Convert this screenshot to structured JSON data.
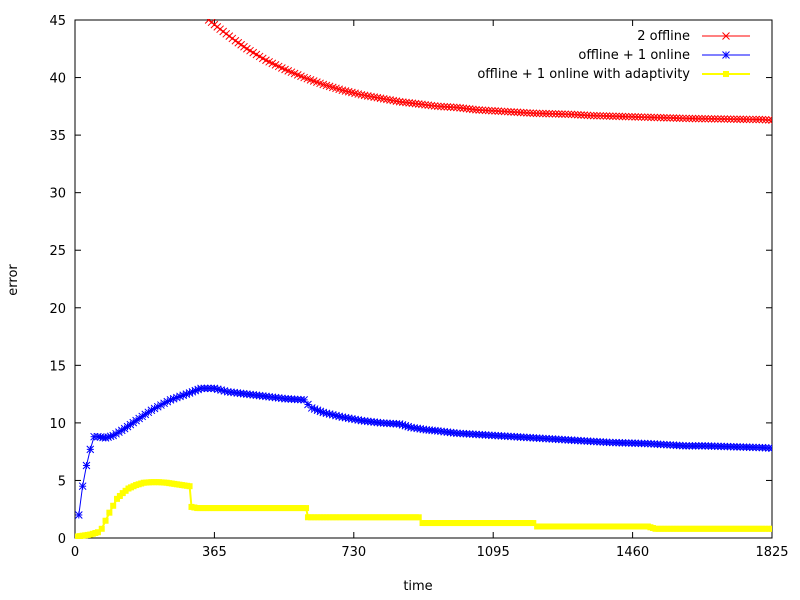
{
  "chart_data": {
    "type": "line",
    "title": "",
    "xlabel": "time",
    "ylabel": "error",
    "xlim": [
      0,
      1825
    ],
    "ylim": [
      0,
      45
    ],
    "xticks": [
      0,
      365,
      730,
      1095,
      1460,
      1825
    ],
    "yticks": [
      0,
      5,
      10,
      15,
      20,
      25,
      30,
      35,
      40,
      45
    ],
    "grid": false,
    "legend_position": "top-right",
    "series": [
      {
        "name": "2 offline",
        "color": "#ff0000",
        "marker": "x",
        "points": [
          [
            350,
            45.0
          ],
          [
            380,
            44.2
          ],
          [
            420,
            43.2
          ],
          [
            450,
            42.5
          ],
          [
            500,
            41.5
          ],
          [
            550,
            40.7
          ],
          [
            600,
            40.0
          ],
          [
            650,
            39.4
          ],
          [
            700,
            38.9
          ],
          [
            750,
            38.5
          ],
          [
            800,
            38.2
          ],
          [
            850,
            37.9
          ],
          [
            900,
            37.7
          ],
          [
            950,
            37.5
          ],
          [
            1000,
            37.4
          ],
          [
            1050,
            37.2
          ],
          [
            1100,
            37.1
          ],
          [
            1150,
            37.0
          ],
          [
            1200,
            36.9
          ],
          [
            1250,
            36.85
          ],
          [
            1300,
            36.8
          ],
          [
            1350,
            36.7
          ],
          [
            1400,
            36.65
          ],
          [
            1450,
            36.6
          ],
          [
            1500,
            36.55
          ],
          [
            1550,
            36.5
          ],
          [
            1600,
            36.45
          ],
          [
            1650,
            36.42
          ],
          [
            1700,
            36.4
          ],
          [
            1750,
            36.37
          ],
          [
            1800,
            36.35
          ],
          [
            1825,
            36.3
          ]
        ]
      },
      {
        "name": "offline + 1 online",
        "color": "#0000ff",
        "marker": "*",
        "points": [
          [
            10,
            2.0
          ],
          [
            20,
            4.5
          ],
          [
            30,
            6.3
          ],
          [
            40,
            7.7
          ],
          [
            50,
            8.8
          ],
          [
            60,
            8.8
          ],
          [
            80,
            8.7
          ],
          [
            100,
            8.9
          ],
          [
            130,
            9.5
          ],
          [
            160,
            10.2
          ],
          [
            200,
            11.1
          ],
          [
            250,
            12.0
          ],
          [
            300,
            12.6
          ],
          [
            330,
            13.0
          ],
          [
            365,
            13.0
          ],
          [
            400,
            12.7
          ],
          [
            450,
            12.5
          ],
          [
            500,
            12.3
          ],
          [
            550,
            12.1
          ],
          [
            600,
            12.0
          ],
          [
            610,
            11.6
          ],
          [
            620,
            11.3
          ],
          [
            650,
            10.9
          ],
          [
            700,
            10.5
          ],
          [
            750,
            10.2
          ],
          [
            800,
            10.0
          ],
          [
            850,
            9.9
          ],
          [
            880,
            9.6
          ],
          [
            920,
            9.4
          ],
          [
            950,
            9.3
          ],
          [
            1000,
            9.1
          ],
          [
            1050,
            9.0
          ],
          [
            1100,
            8.9
          ],
          [
            1150,
            8.8
          ],
          [
            1200,
            8.7
          ],
          [
            1250,
            8.6
          ],
          [
            1300,
            8.5
          ],
          [
            1350,
            8.4
          ],
          [
            1400,
            8.3
          ],
          [
            1450,
            8.25
          ],
          [
            1500,
            8.2
          ],
          [
            1550,
            8.1
          ],
          [
            1600,
            8.0
          ],
          [
            1650,
            8.0
          ],
          [
            1700,
            7.95
          ],
          [
            1750,
            7.9
          ],
          [
            1800,
            7.85
          ],
          [
            1825,
            7.8
          ]
        ]
      },
      {
        "name": "offline + 1 online with adaptivity",
        "color": "#ffff00",
        "marker": "square",
        "points": [
          [
            0,
            0.1
          ],
          [
            20,
            0.2
          ],
          [
            40,
            0.3
          ],
          [
            60,
            0.5
          ],
          [
            70,
            0.8
          ],
          [
            80,
            1.5
          ],
          [
            90,
            2.2
          ],
          [
            100,
            2.8
          ],
          [
            110,
            3.4
          ],
          [
            125,
            3.9
          ],
          [
            140,
            4.3
          ],
          [
            160,
            4.6
          ],
          [
            180,
            4.8
          ],
          [
            200,
            4.85
          ],
          [
            220,
            4.85
          ],
          [
            240,
            4.8
          ],
          [
            260,
            4.7
          ],
          [
            280,
            4.6
          ],
          [
            300,
            4.5
          ],
          [
            305,
            2.7
          ],
          [
            320,
            2.6
          ],
          [
            365,
            2.6
          ],
          [
            450,
            2.6
          ],
          [
            550,
            2.6
          ],
          [
            605,
            2.6
          ],
          [
            610,
            1.8
          ],
          [
            700,
            1.8
          ],
          [
            800,
            1.8
          ],
          [
            900,
            1.8
          ],
          [
            910,
            1.3
          ],
          [
            1000,
            1.3
          ],
          [
            1100,
            1.3
          ],
          [
            1200,
            1.3
          ],
          [
            1210,
            1.0
          ],
          [
            1300,
            1.0
          ],
          [
            1400,
            1.0
          ],
          [
            1500,
            1.0
          ],
          [
            1520,
            0.8
          ],
          [
            1600,
            0.8
          ],
          [
            1700,
            0.8
          ],
          [
            1800,
            0.8
          ],
          [
            1825,
            0.8
          ]
        ]
      }
    ]
  }
}
